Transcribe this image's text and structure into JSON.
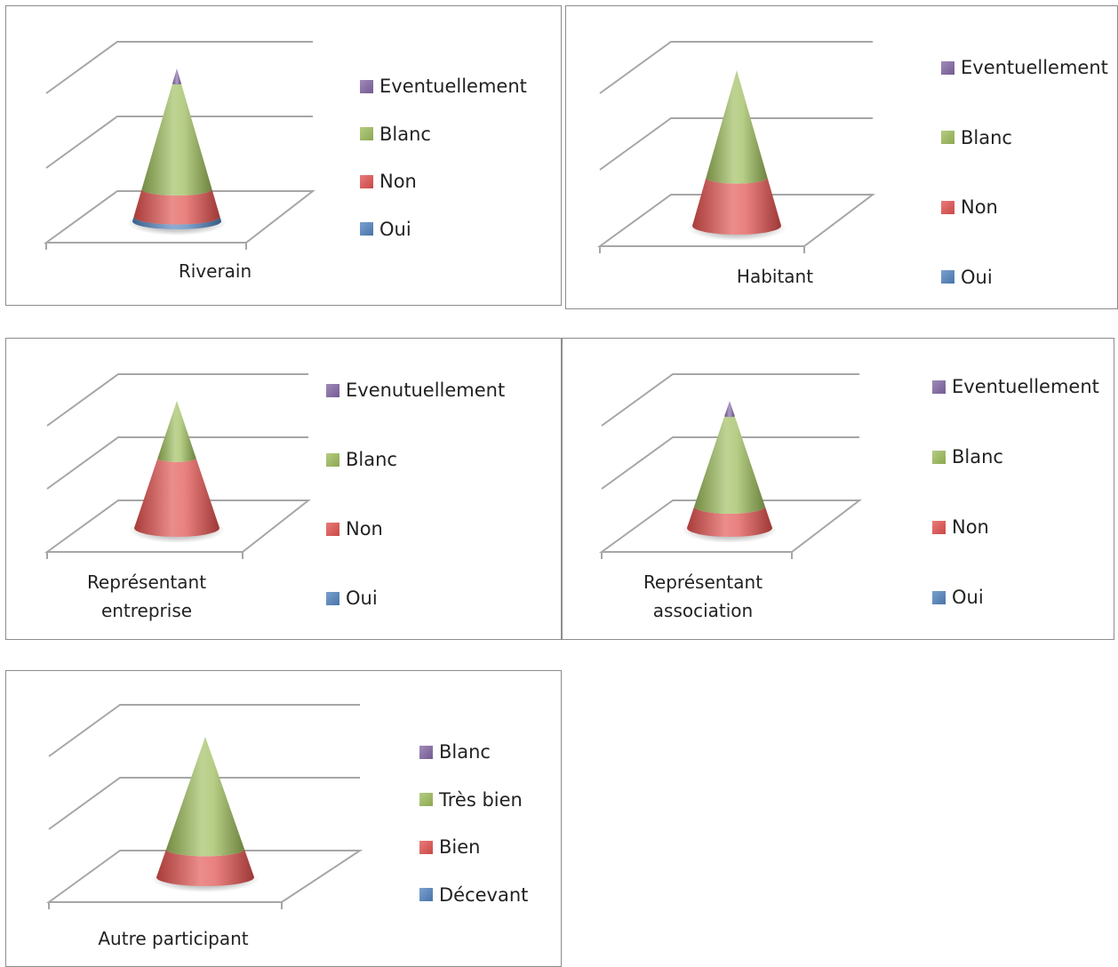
{
  "colors": {
    "purple": "#8064a2",
    "green": "#9bbb59",
    "red": "#e0504d",
    "blue": "#4f81bd"
  },
  "chart_data": [
    {
      "type": "cone",
      "category": "Riverain",
      "series": [
        {
          "name": "Oui",
          "value": 3,
          "color": "#4f81bd"
        },
        {
          "name": "Non",
          "value": 18,
          "color": "#e0504d"
        },
        {
          "name": "Blanc",
          "value": 69,
          "color": "#9bbb59"
        },
        {
          "name": "Eventuellement",
          "value": 10,
          "color": "#8064a2"
        }
      ],
      "legend": [
        "Eventuellement",
        "Blanc",
        "Non",
        "Oui"
      ],
      "legend_position": "right",
      "grid": true
    },
    {
      "type": "cone",
      "category": "Habitant",
      "series": [
        {
          "name": "Oui",
          "value": 0,
          "color": "#4f81bd"
        },
        {
          "name": "Non",
          "value": 31,
          "color": "#e0504d"
        },
        {
          "name": "Blanc",
          "value": 69,
          "color": "#9bbb59"
        },
        {
          "name": "Eventuellement",
          "value": 0,
          "color": "#8064a2"
        }
      ],
      "legend": [
        "Eventuellement",
        "Blanc",
        "Non",
        "Oui"
      ],
      "legend_position": "right",
      "grid": true
    },
    {
      "type": "cone",
      "category": "Représentant entreprise",
      "series": [
        {
          "name": "Oui",
          "value": 0,
          "color": "#4f81bd"
        },
        {
          "name": "Non",
          "value": 55,
          "color": "#e0504d"
        },
        {
          "name": "Blanc",
          "value": 45,
          "color": "#9bbb59"
        },
        {
          "name": "Evenutuellement",
          "value": 0,
          "color": "#8064a2"
        }
      ],
      "legend": [
        "Evenutuellement",
        "Blanc",
        "Non",
        "Oui"
      ],
      "legend_position": "right",
      "grid": true
    },
    {
      "type": "cone",
      "category": "Représentant association",
      "series": [
        {
          "name": "Oui",
          "value": 0,
          "color": "#4f81bd"
        },
        {
          "name": "Non",
          "value": 17,
          "color": "#e0504d"
        },
        {
          "name": "Blanc",
          "value": 71,
          "color": "#9bbb59"
        },
        {
          "name": "Eventuellement",
          "value": 12,
          "color": "#8064a2"
        }
      ],
      "legend": [
        "Eventuellement",
        "Blanc",
        "Non",
        "Oui"
      ],
      "legend_position": "right",
      "grid": true
    },
    {
      "type": "cone",
      "category": "Autre participant",
      "series": [
        {
          "name": "Décevant",
          "value": 0,
          "color": "#4f81bd"
        },
        {
          "name": "Bien",
          "value": 20,
          "color": "#e0504d"
        },
        {
          "name": "Très bien",
          "value": 80,
          "color": "#9bbb59"
        },
        {
          "name": "Blanc",
          "value": 0,
          "color": "#8064a2"
        }
      ],
      "legend": [
        "Blanc",
        "Très bien",
        "Bien",
        "Décevant"
      ],
      "legend_position": "right",
      "grid": true
    }
  ]
}
